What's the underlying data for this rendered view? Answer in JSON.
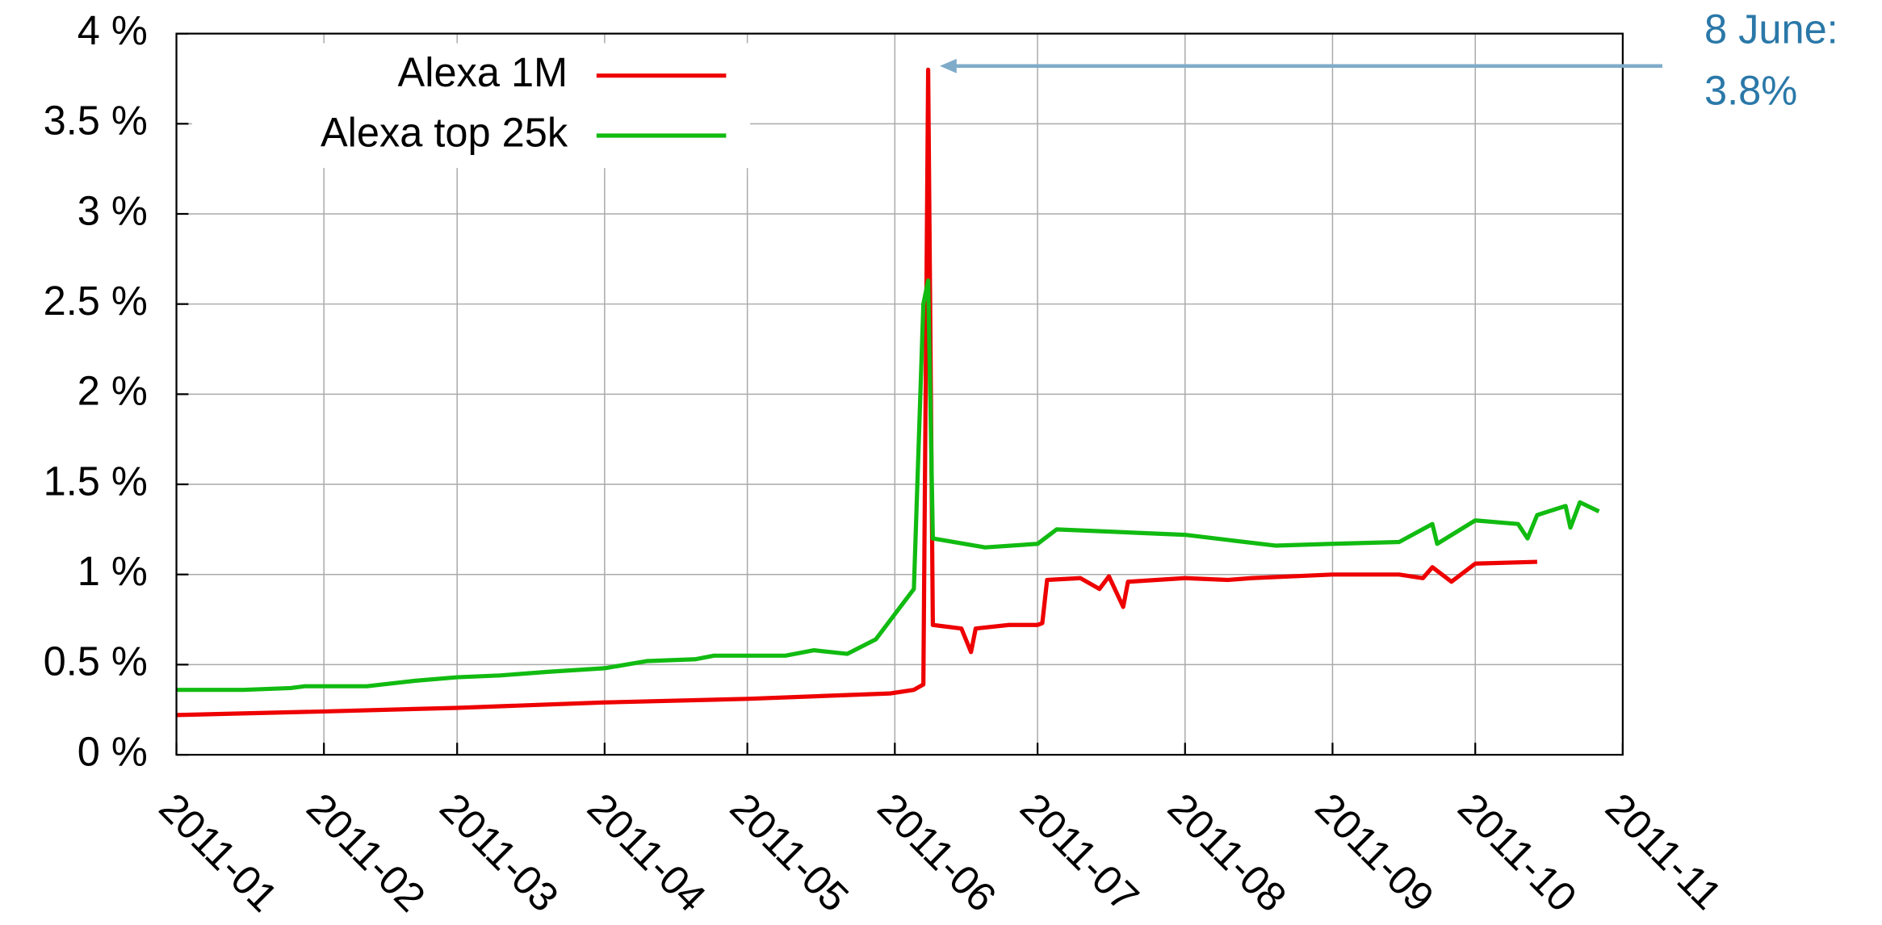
{
  "chart_data": {
    "type": "line",
    "annotation": [
      "8 June:",
      "3.8%"
    ],
    "xlim": [
      "2011-01-01",
      "2011-11-01"
    ],
    "xticks": [
      {
        "value": "2011-01-01",
        "label": "2011-01"
      },
      {
        "value": "2011-02-01",
        "label": "2011-02"
      },
      {
        "value": "2011-03-01",
        "label": "2011-03"
      },
      {
        "value": "2011-04-01",
        "label": "2011-04"
      },
      {
        "value": "2011-05-01",
        "label": "2011-05"
      },
      {
        "value": "2011-06-01",
        "label": "2011-06"
      },
      {
        "value": "2011-07-01",
        "label": "2011-07"
      },
      {
        "value": "2011-08-01",
        "label": "2011-08"
      },
      {
        "value": "2011-09-01",
        "label": "2011-09"
      },
      {
        "value": "2011-10-01",
        "label": "2011-10"
      },
      {
        "value": "2011-11-01",
        "label": "2011-11"
      }
    ],
    "ylim": [
      0,
      4
    ],
    "yticks": [
      {
        "value": 0,
        "label": "0 %"
      },
      {
        "value": 0.5,
        "label": "0.5 %"
      },
      {
        "value": 1,
        "label": "1 %"
      },
      {
        "value": 1.5,
        "label": "1.5 %"
      },
      {
        "value": 2,
        "label": "2 %"
      },
      {
        "value": 2.5,
        "label": "2.5 %"
      },
      {
        "value": 3,
        "label": "3 %"
      },
      {
        "value": 3.5,
        "label": "3.5 %"
      },
      {
        "value": 4,
        "label": "4 %"
      }
    ],
    "grid": true,
    "legend": "upper left",
    "series": [
      {
        "name": "Alexa 1M",
        "color": "#ee0000",
        "x": [
          "2011-01-01",
          "2011-02-01",
          "2011-03-01",
          "2011-04-01",
          "2011-05-01",
          "2011-05-31",
          "2011-06-05",
          "2011-06-07",
          "2011-06-08",
          "2011-06-09",
          "2011-06-15",
          "2011-06-17",
          "2011-06-18",
          "2011-06-25",
          "2011-07-01",
          "2011-07-02",
          "2011-07-03",
          "2011-07-10",
          "2011-07-14",
          "2011-07-16",
          "2011-07-19",
          "2011-07-20",
          "2011-08-01",
          "2011-08-10",
          "2011-08-15",
          "2011-09-01",
          "2011-09-15",
          "2011-09-20",
          "2011-09-22",
          "2011-09-26",
          "2011-10-01",
          "2011-10-14"
        ],
        "values": [
          0.22,
          0.24,
          0.26,
          0.29,
          0.31,
          0.34,
          0.36,
          0.39,
          3.8,
          0.72,
          0.7,
          0.57,
          0.7,
          0.72,
          0.72,
          0.73,
          0.97,
          0.98,
          0.92,
          0.99,
          0.82,
          0.96,
          0.98,
          0.97,
          0.98,
          1.0,
          1.0,
          0.98,
          1.04,
          0.96,
          1.06,
          1.07
        ]
      },
      {
        "name": "Alexa top 25k",
        "color": "#11bb11",
        "x": [
          "2011-01-01",
          "2011-01-15",
          "2011-01-25",
          "2011-01-28",
          "2011-02-10",
          "2011-02-20",
          "2011-03-01",
          "2011-03-10",
          "2011-03-20",
          "2011-04-01",
          "2011-04-10",
          "2011-04-20",
          "2011-04-24",
          "2011-05-09",
          "2011-05-15",
          "2011-05-22",
          "2011-05-28",
          "2011-06-05",
          "2011-06-07",
          "2011-06-08",
          "2011-06-09",
          "2011-06-20",
          "2011-07-01",
          "2011-07-05",
          "2011-08-01",
          "2011-08-20",
          "2011-09-01",
          "2011-09-15",
          "2011-09-22",
          "2011-09-23",
          "2011-10-01",
          "2011-10-10",
          "2011-10-12",
          "2011-10-14",
          "2011-10-20",
          "2011-10-21",
          "2011-10-23",
          "2011-10-27"
        ],
        "values": [
          0.36,
          0.36,
          0.37,
          0.38,
          0.38,
          0.41,
          0.43,
          0.44,
          0.46,
          0.48,
          0.52,
          0.53,
          0.55,
          0.55,
          0.58,
          0.56,
          0.64,
          0.92,
          2.5,
          2.63,
          1.2,
          1.15,
          1.17,
          1.25,
          1.22,
          1.16,
          1.17,
          1.18,
          1.28,
          1.17,
          1.3,
          1.28,
          1.2,
          1.33,
          1.38,
          1.26,
          1.4,
          1.35
        ]
      }
    ]
  }
}
